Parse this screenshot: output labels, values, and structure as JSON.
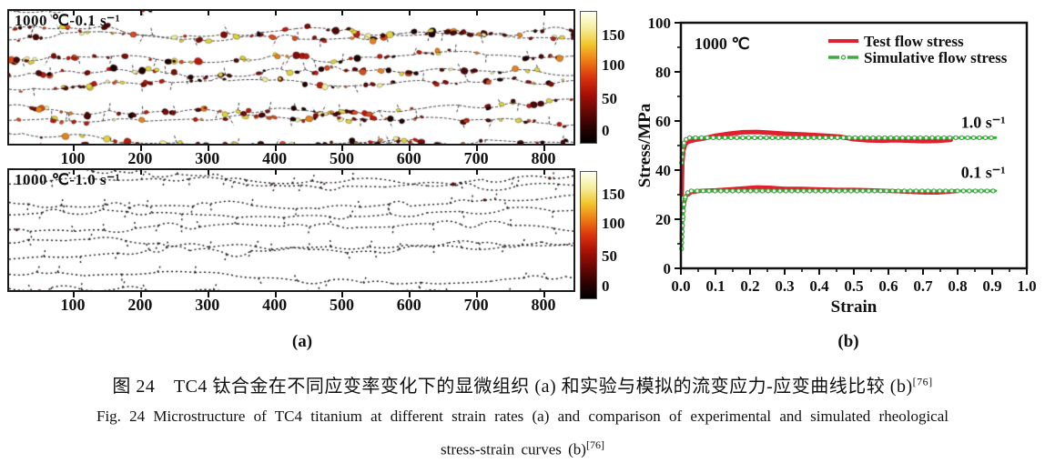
{
  "figure": {
    "panel_a": {
      "label": "(a)",
      "micrographs": [
        {
          "title": "1000 ℃-0.1 s⁻¹",
          "x_tick_labels": [
            "100",
            "200",
            "300",
            "400",
            "500",
            "600",
            "700",
            "800"
          ],
          "colorbar_ticks": [
            "150",
            "100",
            "50",
            "0"
          ],
          "boundary_color": "#3a3a3a",
          "particle_palette": [
            {
              "color": "#1d0303",
              "weight": 0.14
            },
            {
              "color": "#4a0707",
              "weight": 0.18
            },
            {
              "color": "#7c0d08",
              "weight": 0.16
            },
            {
              "color": "#b81a0c",
              "weight": 0.14
            },
            {
              "color": "#d9491a",
              "weight": 0.1
            },
            {
              "color": "#e2821d",
              "weight": 0.08
            },
            {
              "color": "#dfd23c",
              "weight": 0.12
            },
            {
              "color": "#f0eea0",
              "weight": 0.08
            }
          ]
        },
        {
          "title": "1000 ℃-1.0 s⁻¹",
          "x_tick_labels": [
            "100",
            "200",
            "300",
            "400",
            "500",
            "600",
            "700",
            "800"
          ],
          "colorbar_ticks": [
            "150",
            "100",
            "50",
            "0"
          ],
          "boundary_color": "#151515",
          "particle_palette": [
            {
              "color": "#6b0905",
              "weight": 0.7
            },
            {
              "color": "#a81108",
              "weight": 0.3
            }
          ]
        }
      ],
      "colorbar_gradient_bottom_to_top": [
        "#000000",
        "#2e0302",
        "#6b0905",
        "#a81108",
        "#d8350e",
        "#ee7b15",
        "#f2c52b",
        "#f5ee9e",
        "#fffff2"
      ]
    },
    "panel_b": {
      "label": "(b)"
    },
    "caption_zh": "图 24　TC4 钛合金在不同应变率变化下的显微组织 (a) 和实验与模拟的流变应力-应变曲线比较 (b)",
    "caption_zh_ref": "[76]",
    "caption_en_line1": "Fig. 24   Microstructure of TC4 titanium at different strain rates (a) and comparison of experimental and simulated rheological",
    "caption_en_line2": "stress-strain curves (b)",
    "caption_en_ref": "[76]"
  },
  "chart_data": {
    "type": "line",
    "title": "",
    "xlabel": "Strain",
    "ylabel": "Stress/MPa",
    "xlim": [
      0.0,
      1.0
    ],
    "ylim": [
      0,
      100
    ],
    "x_ticks": [
      0.0,
      0.1,
      0.2,
      0.3,
      0.4,
      0.5,
      0.6,
      0.7,
      0.8,
      0.9,
      1.0
    ],
    "x_tick_labels": [
      "0.0",
      "0.1",
      "0.2",
      "0.3",
      "0.4",
      "0.5",
      "0.6",
      "0.7",
      "0.8",
      "0.9",
      "1.0"
    ],
    "y_ticks": [
      0,
      20,
      40,
      60,
      80,
      100
    ],
    "y_tick_labels": [
      "0",
      "20",
      "40",
      "60",
      "80",
      "100"
    ],
    "x_minor_step": 0.05,
    "y_minor_step": 10,
    "grid": false,
    "annotations": [
      {
        "text": "1000 ℃",
        "x": 0.039,
        "y": 91.5
      },
      {
        "text": "1.0 s⁻¹",
        "x": 0.81,
        "y": 59.5
      },
      {
        "text": "0.1 s⁻¹",
        "x": 0.81,
        "y": 39.0
      }
    ],
    "legend": {
      "position": "top-right",
      "entries": [
        {
          "label": "Test flow stress",
          "color": "#e0202e",
          "style": "solid"
        },
        {
          "label": "Simulative flow stress",
          "color": "#3aad3e",
          "style": "dash-dot-circle"
        }
      ]
    },
    "series": [
      {
        "name": "Test flow stress (1.0 s⁻¹)",
        "color": "#e0202e",
        "style": "solid",
        "width": 5,
        "x": [
          0.002,
          0.004,
          0.007,
          0.012,
          0.02,
          0.04,
          0.07,
          0.1,
          0.14,
          0.18,
          0.22,
          0.26,
          0.3,
          0.34,
          0.38,
          0.42,
          0.46,
          0.5,
          0.54,
          0.58,
          0.62,
          0.66,
          0.7,
          0.74,
          0.78
        ],
        "y": [
          30,
          43,
          48,
          50.5,
          51.5,
          52.3,
          53.0,
          54.0,
          54.8,
          55.4,
          55.5,
          55.2,
          54.8,
          54.6,
          54.3,
          54.0,
          53.6,
          52.6,
          52.1,
          52.0,
          52.2,
          52.0,
          51.8,
          51.9,
          52.3
        ]
      },
      {
        "name": "Simulative flow stress (1.0 s⁻¹)",
        "color": "#3aad3e",
        "style": "dash-dot-circle",
        "width": 3,
        "x": [
          0.002,
          0.005,
          0.009,
          0.015,
          0.025,
          0.91
        ],
        "y": [
          43,
          48,
          51,
          52.5,
          53.2,
          53.2
        ]
      },
      {
        "name": "Test flow stress (0.1 s⁻¹)",
        "color": "#e0202e",
        "style": "solid",
        "width": 4.5,
        "x": [
          0.002,
          0.004,
          0.008,
          0.015,
          0.03,
          0.06,
          0.1,
          0.14,
          0.18,
          0.22,
          0.26,
          0.3,
          0.35,
          0.4,
          0.45,
          0.5,
          0.55,
          0.6,
          0.65,
          0.7,
          0.74,
          0.78,
          0.8
        ],
        "y": [
          12,
          20,
          26,
          29.5,
          31.0,
          31.6,
          31.8,
          32.2,
          32.6,
          33.0,
          32.8,
          32.4,
          32.4,
          32.2,
          32.0,
          32.0,
          31.8,
          31.5,
          31.2,
          30.9,
          30.8,
          31.2,
          31.5
        ]
      },
      {
        "name": "Simulative flow stress (0.1 s⁻¹)",
        "color": "#3aad3e",
        "style": "dash-dot-circle",
        "width": 3,
        "x": [
          0.002,
          0.004,
          0.006,
          0.009,
          0.013,
          0.02,
          0.03,
          0.91
        ],
        "y": [
          8,
          15,
          21,
          26,
          29,
          30.8,
          31.5,
          31.5
        ]
      }
    ]
  }
}
